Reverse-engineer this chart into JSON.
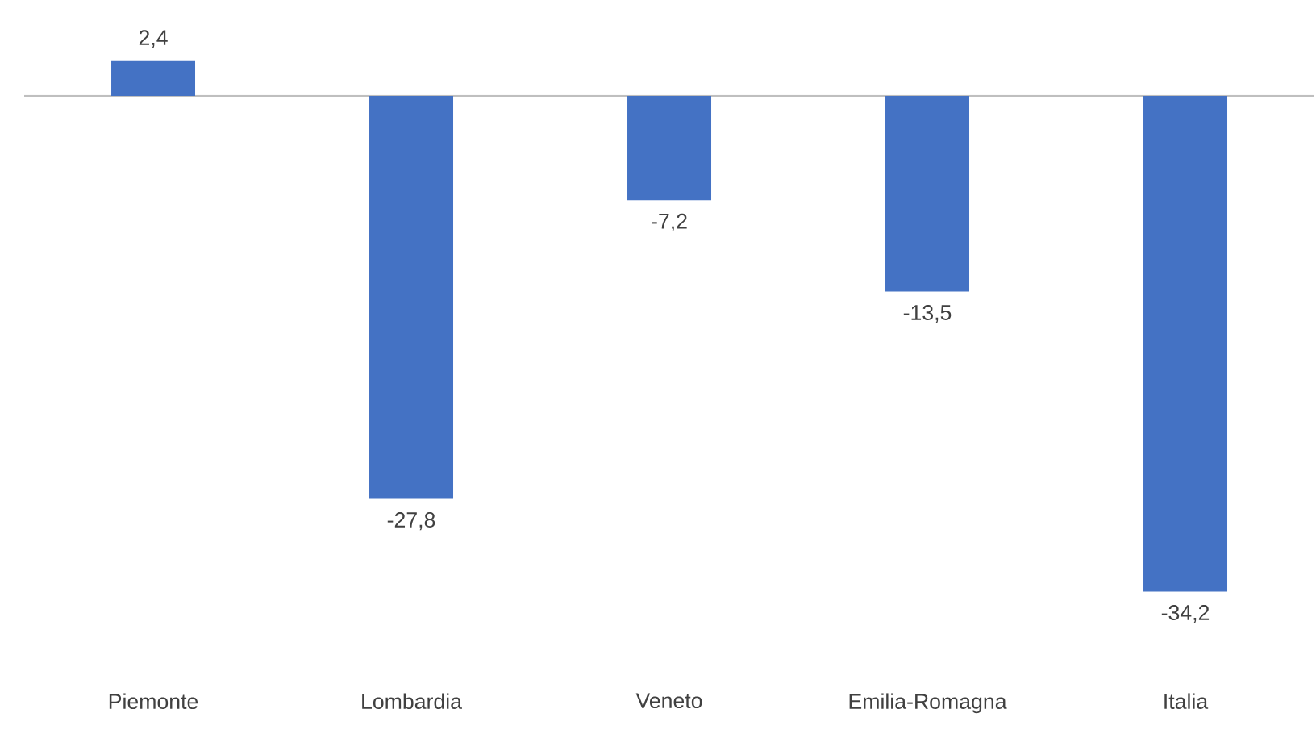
{
  "chart_data": {
    "type": "bar",
    "categories": [
      "Piemonte",
      "Lombardia",
      "Veneto",
      "Emilia-Romagna",
      "Italia"
    ],
    "values": [
      2.4,
      -27.8,
      -7.2,
      -13.5,
      -34.2
    ],
    "value_labels": [
      "2,4",
      "-27,8",
      "-7,2",
      "-13,5",
      "-34,2"
    ],
    "color": "#4472c4"
  }
}
